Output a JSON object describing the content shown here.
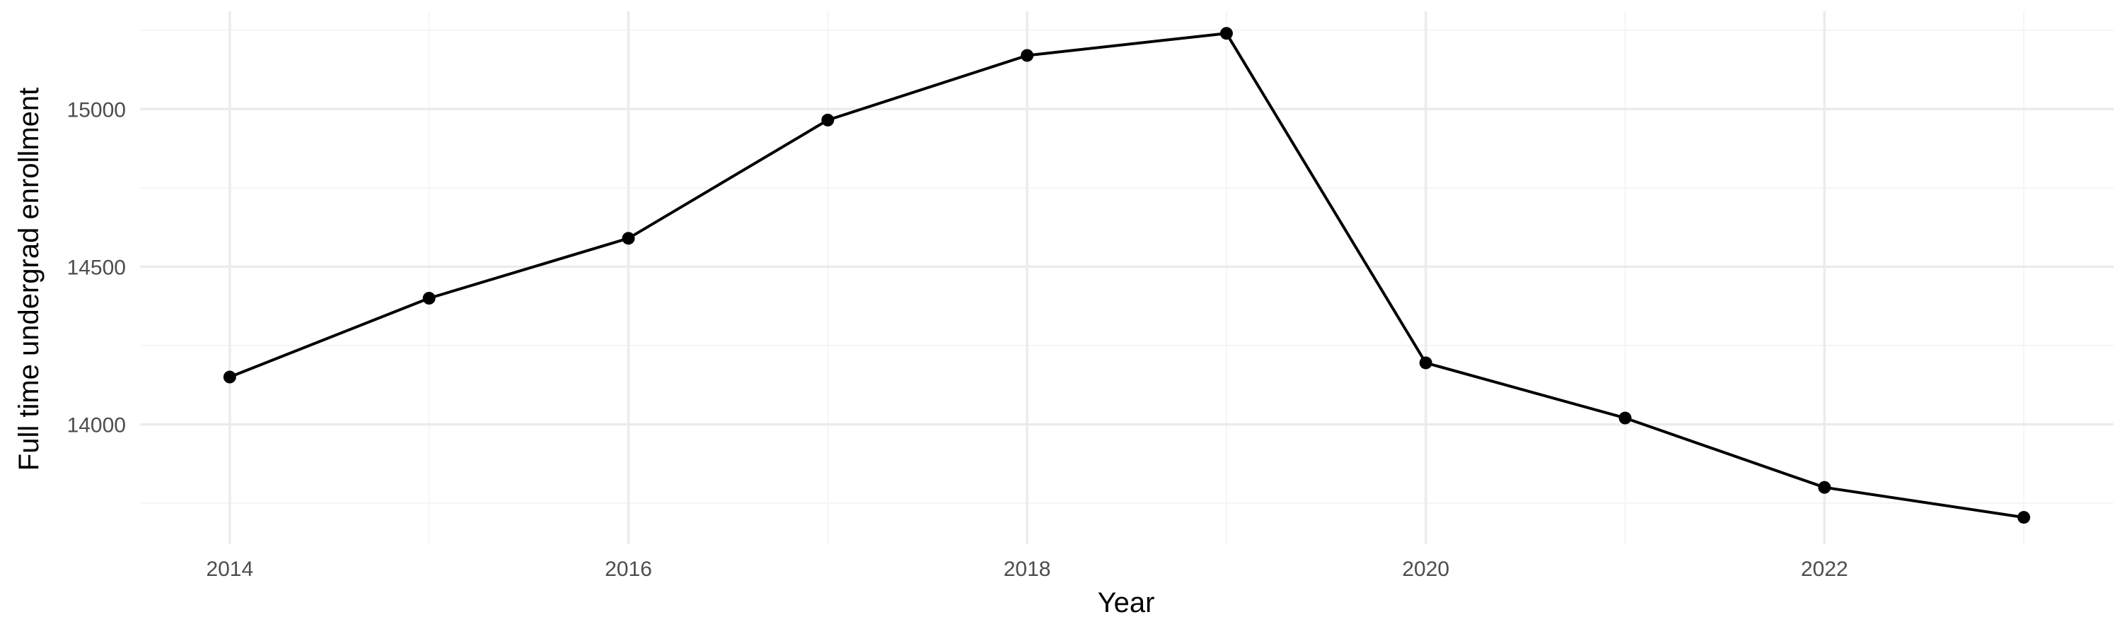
{
  "chart_data": {
    "type": "line",
    "title": "",
    "xlabel": "Year",
    "ylabel": "Full time undergrad enrollment",
    "x": [
      2014,
      2015,
      2016,
      2017,
      2018,
      2019,
      2020,
      2021,
      2022,
      2023
    ],
    "series": [
      {
        "values": [
          14150,
          14400,
          14590,
          14965,
          15170,
          15240,
          14195,
          14020,
          13800,
          13705
        ]
      }
    ],
    "xlim": [
      2013.55,
      2023.45
    ],
    "ylim": [
      13620,
      15310
    ],
    "x_ticks": [
      2014,
      2016,
      2018,
      2020,
      2022
    ],
    "x_tick_labels": [
      "2014",
      "2016",
      "2018",
      "2020",
      "2022"
    ],
    "x_minor_ticks": [
      2015,
      2017,
      2019,
      2021,
      2023
    ],
    "y_ticks": [
      14000,
      14500,
      15000
    ],
    "y_tick_labels": [
      "14000",
      "14500",
      "15000"
    ],
    "y_minor_ticks": [
      13750,
      14250,
      14750,
      15250
    ],
    "grid": true,
    "legend": "none",
    "colors": {
      "line": "#000000",
      "grid_major": "#ebebeb",
      "grid_minor": "#f5f5f5",
      "tick_text": "#4d4d4d"
    }
  }
}
